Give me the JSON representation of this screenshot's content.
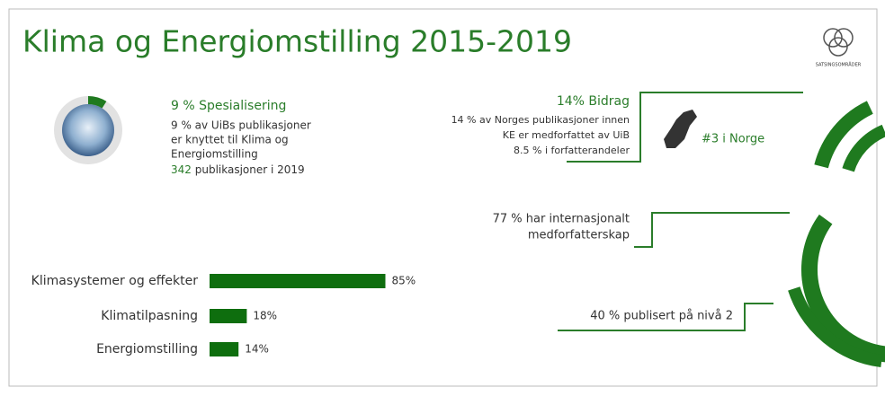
{
  "title": "Klima og Energiomstilling 2015-2019",
  "logo_text": "SATSINGSOMRÅDER",
  "specialization": {
    "share": 9,
    "heading": "9 % Spesialisering",
    "lines": [
      "9 % av UiBs publikasjoner",
      "er knyttet til Klima og",
      "Energiomstilling"
    ],
    "count": "342",
    "count_label": "publikasjoner i 2019"
  },
  "contribution": {
    "share": 14,
    "heading": "14% Bidrag",
    "lines": [
      "14 % av Norges publikasjoner innen",
      "KE er medforfattet av UiB",
      "8.5 % i forfatterandeler"
    ],
    "rank": "#3 i Norge"
  },
  "international": {
    "share": 77,
    "lines": [
      "77 % har internasjonalt",
      "medforfatterskap"
    ]
  },
  "level2": {
    "share": 40,
    "text": "40 % publisert på nivå 2"
  },
  "chart_data": {
    "type": "bar",
    "orientation": "horizontal",
    "categories": [
      "Klimasystemer og effekter",
      "Klimatilpasning",
      "Energiomstilling"
    ],
    "values": [
      85,
      18,
      14
    ],
    "value_labels": [
      "85%",
      "18%",
      "14%"
    ],
    "color": "#0e6e0e"
  }
}
